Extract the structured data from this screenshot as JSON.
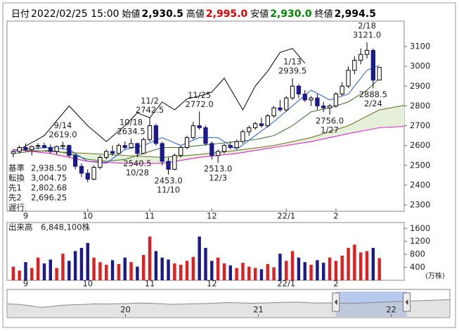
{
  "header": {
    "items": [
      {
        "label": "日付",
        "value": "2022/02/25 15:00",
        "color": "#000000",
        "bold": false
      },
      {
        "label": "始値",
        "value": "2,930.5",
        "color": "#000000",
        "bold": true
      },
      {
        "label": "高値",
        "value": "2,995.0",
        "color": "#e00000",
        "bold": true
      },
      {
        "label": "安値",
        "value": "2,930.0",
        "color": "#008800",
        "bold": true
      },
      {
        "label": "終値",
        "value": "2,994.5",
        "color": "#000000",
        "bold": true
      }
    ]
  },
  "chart_data": {
    "type": "candlestick",
    "xlim": [
      -1,
      63
    ],
    "ylim": [
      2268,
      3228
    ],
    "yticks": [
      2300,
      2400,
      2500,
      2600,
      2700,
      2800,
      2900,
      3000,
      3100
    ],
    "xticks": [
      {
        "value": 2,
        "label": "9"
      },
      {
        "value": 12,
        "label": "10"
      },
      {
        "value": 22,
        "label": "11"
      },
      {
        "value": 32,
        "label": "12"
      },
      {
        "value": 44,
        "label": "22/1"
      },
      {
        "value": 52,
        "label": "2"
      }
    ],
    "up_color": "#ffffff",
    "down_color": "#1a1a8c",
    "outline_color": "#000000",
    "open": [
      2560,
      2570,
      2590,
      2580,
      2595,
      2600,
      2590,
      2570,
      2595,
      2600,
      2550,
      2495,
      2460,
      2430,
      2490,
      2540,
      2570,
      2560,
      2600,
      2590,
      2610,
      2560,
      2630,
      2700,
      2610,
      2520,
      2480,
      2550,
      2590,
      2640,
      2700,
      2690,
      2610,
      2550,
      2570,
      2600,
      2590,
      2620,
      2670,
      2690,
      2710,
      2700,
      2750,
      2790,
      2780,
      2840,
      2900,
      2860,
      2830,
      2840,
      2800,
      2790,
      2800,
      2860,
      2900,
      2980,
      3030,
      3060,
      3080,
      2930.5
    ],
    "high": [
      2580,
      2600,
      2610,
      2600,
      2612,
      2615,
      2605,
      2600,
      2619,
      2605,
      2560,
      2510,
      2480,
      2500,
      2550,
      2580,
      2600,
      2610,
      2620,
      2634.5,
      2615,
      2640,
      2742.5,
      2710,
      2620,
      2540,
      2560,
      2600,
      2650,
      2720,
      2772,
      2700,
      2620,
      2580,
      2610,
      2620,
      2630,
      2680,
      2700,
      2720,
      2740,
      2760,
      2800,
      2830,
      2850,
      2939.5,
      2910,
      2880,
      2850,
      2860,
      2820,
      2810,
      2870,
      2920,
      3000,
      3050,
      3090,
      3121,
      3090,
      2995
    ],
    "low": [
      2540,
      2560,
      2570,
      2550,
      2580,
      2585,
      2560,
      2555,
      2580,
      2540,
      2480,
      2440,
      2415,
      2425,
      2480,
      2530,
      2550,
      2555,
      2580,
      2585,
      2540.5,
      2555,
      2620,
      2600,
      2500,
      2453,
      2475,
      2540,
      2580,
      2630,
      2680,
      2600,
      2530,
      2513,
      2560,
      2580,
      2585,
      2610,
      2650,
      2680,
      2690,
      2690,
      2740,
      2770,
      2770,
      2830,
      2840,
      2820,
      2800,
      2780,
      2770,
      2756,
      2790,
      2850,
      2890,
      2960,
      3010,
      3040,
      2888.5,
      2930
    ],
    "close": [
      2570,
      2590,
      2580,
      2595,
      2600,
      2590,
      2570,
      2595,
      2600,
      2550,
      2495,
      2460,
      2430,
      2490,
      2540,
      2570,
      2560,
      2600,
      2590,
      2610,
      2560,
      2630,
      2700,
      2610,
      2520,
      2480,
      2550,
      2590,
      2640,
      2700,
      2690,
      2610,
      2550,
      2570,
      2600,
      2590,
      2620,
      2670,
      2690,
      2710,
      2700,
      2750,
      2790,
      2780,
      2840,
      2900,
      2860,
      2830,
      2840,
      2800,
      2790,
      2800,
      2860,
      2900,
      2980,
      3030,
      3060,
      3080,
      2930,
      2994.5
    ],
    "annotations": [
      {
        "date": "10/18",
        "label": "2634.5",
        "value": 2634.5,
        "kind": "high"
      },
      {
        "date": "11/2",
        "label": "2742.5",
        "value": 2742.5,
        "kind": "high"
      },
      {
        "date": "11/25",
        "label": "2772.0",
        "value": 2772,
        "kind": "high"
      },
      {
        "date": "1/13",
        "label": "2939.5",
        "value": 2939.5,
        "kind": "high"
      },
      {
        "date": "2/18",
        "label": "3121.0",
        "value": 3121,
        "kind": "high"
      },
      {
        "date": "9/14",
        "label": "2619.0",
        "value": 2619,
        "kind": "high"
      },
      {
        "date": "10/28",
        "label": "2540.5",
        "value": 2540.5,
        "kind": "low"
      },
      {
        "date": "11/10",
        "label": "2453.0",
        "value": 2453,
        "kind": "low"
      },
      {
        "date": "12/3",
        "label": "2513.0",
        "value": 2513,
        "kind": "low"
      },
      {
        "date": "1/27",
        "label": "2756.0",
        "value": 2756,
        "kind": "low"
      },
      {
        "date": "2/24",
        "label": "2888.5",
        "value": 2888.5,
        "kind": "low"
      }
    ],
    "lines": [
      {
        "name": "基準",
        "color": "#2e6b1e",
        "value_label": "2,938.50",
        "x": [
          0,
          3,
          6,
          9,
          12,
          15,
          18,
          21,
          24,
          27,
          30,
          33,
          36,
          39,
          42,
          45,
          48,
          51,
          54,
          57,
          59
        ],
        "values": [
          2560,
          2570,
          2575,
          2560,
          2530,
          2520,
          2530,
          2560,
          2590,
          2590,
          2600,
          2610,
          2620,
          2630,
          2650,
          2700,
          2770,
          2790,
          2820,
          2880,
          2938.5
        ]
      },
      {
        "name": "転換",
        "color": "#1f5fd6",
        "value_label": "3,004.75",
        "x": [
          0,
          3,
          6,
          9,
          12,
          15,
          18,
          21,
          24,
          27,
          30,
          33,
          36,
          39,
          42,
          45,
          48,
          51,
          54,
          57,
          59
        ],
        "values": [
          2570,
          2585,
          2590,
          2580,
          2520,
          2510,
          2580,
          2600,
          2640,
          2600,
          2640,
          2640,
          2580,
          2650,
          2720,
          2800,
          2880,
          2830,
          2860,
          2980,
          3004.75
        ]
      },
      {
        "name": "先1",
        "color": "#6b6b1a",
        "value_label": "2,802.68",
        "cloud_color": "#e4f0da",
        "x": [
          0,
          6,
          12,
          18,
          24,
          30,
          36,
          42,
          48,
          54,
          59,
          63
        ],
        "values": [
          2580,
          2570,
          2560,
          2550,
          2540,
          2555,
          2575,
          2600,
          2640,
          2700,
          2780,
          2802.68
        ]
      },
      {
        "name": "先2",
        "color": "#e010c8",
        "value_label": "2,696.25",
        "x": [
          0,
          6,
          12,
          18,
          24,
          30,
          36,
          42,
          48,
          54,
          59,
          63
        ],
        "values": [
          2580,
          2560,
          2520,
          2510,
          2510,
          2540,
          2560,
          2590,
          2620,
          2660,
          2690,
          2696.25
        ]
      },
      {
        "name": "遅行",
        "color": "#000000",
        "x": [
          1,
          5,
          9,
          12,
          15,
          18,
          20,
          22,
          24,
          26,
          28,
          30,
          32,
          34,
          37,
          39,
          41,
          43,
          45,
          47
        ],
        "values": [
          2580,
          2650,
          2800,
          2700,
          2620,
          2700,
          2765,
          2740,
          2820,
          2780,
          2835,
          2850,
          2870,
          2940,
          2780,
          2900,
          2975,
          3070,
          3090,
          3015
        ]
      }
    ],
    "volume": {
      "title": "出来高",
      "total_label": "6,848,100株",
      "unit": "(万株)",
      "ylim": [
        0,
        1780
      ],
      "yticks": [
        400,
        800,
        1200,
        1600
      ],
      "up_color": "#e02020",
      "down_color": "#1a1a8c",
      "values": [
        420,
        300,
        560,
        380,
        700,
        520,
        640,
        380,
        820,
        600,
        900,
        1000,
        1150,
        700,
        560,
        480,
        620,
        500,
        700,
        560,
        420,
        780,
        1350,
        900,
        700,
        640,
        520,
        480,
        600,
        720,
        1350,
        1000,
        600,
        700,
        520,
        460,
        380,
        540,
        420,
        380,
        340,
        500,
        400,
        820,
        600,
        900,
        700,
        560,
        480,
        620,
        540,
        700,
        600,
        760,
        1000,
        1100,
        860,
        900,
        1000,
        684.81
      ]
    },
    "navigator": {
      "xlim": [
        0,
        40
      ],
      "ylim": [
        1000,
        4000
      ],
      "selection": [
        29.7,
        36.1
      ],
      "xticks": [
        {
          "value": 10.7,
          "label": "20"
        },
        {
          "value": 22.7,
          "label": "21"
        },
        {
          "value": 34.7,
          "label": "22"
        }
      ],
      "values": [
        2500,
        2450,
        2300,
        2100,
        2200,
        2350,
        2400,
        2450,
        2500,
        2480,
        2520,
        2550,
        2600,
        2580,
        2500,
        2450,
        2480,
        2520,
        2550,
        2600,
        2650,
        2620,
        2580,
        2600,
        2640,
        2680,
        2700,
        2650,
        2600,
        2620,
        2580,
        2550,
        2600,
        2650,
        2700,
        2750,
        2800,
        2850,
        2900,
        2950,
        3000
      ]
    }
  }
}
